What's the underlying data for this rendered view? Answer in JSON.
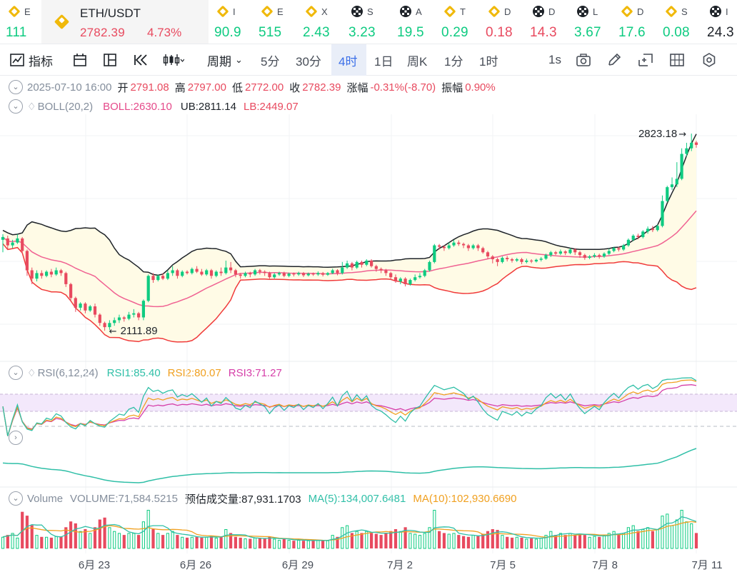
{
  "ticker": [
    {
      "name": "E",
      "value": "111",
      "icon": "binance-icon",
      "color": "#0ecb81"
    },
    {
      "name": "ETH/USDT",
      "value": "2782.39",
      "change": "4.73%",
      "icon": "binance-icon",
      "color": "#e84a5f",
      "active": true
    },
    {
      "name": "I",
      "value": "90.9",
      "icon": "binance-icon",
      "color": "#0ecb81"
    },
    {
      "name": "E",
      "value": "515",
      "icon": "binance-icon",
      "color": "#0ecb81"
    },
    {
      "name": "X",
      "value": "2.43",
      "icon": "binance-icon",
      "color": "#0ecb81"
    },
    {
      "name": "S",
      "value": "3.23",
      "icon": "okx-icon",
      "color": "#0ecb81"
    },
    {
      "name": "A",
      "value": "19.5",
      "icon": "okx-icon",
      "color": "#0ecb81"
    },
    {
      "name": "T",
      "value": "0.29",
      "icon": "binance-icon",
      "color": "#0ecb81"
    },
    {
      "name": "D",
      "value": "0.18",
      "icon": "binance-icon",
      "color": "#e84a5f"
    },
    {
      "name": "D",
      "value": "14.3",
      "icon": "okx-icon",
      "color": "#e84a5f"
    },
    {
      "name": "L",
      "value": "3.67",
      "icon": "okx-icon",
      "color": "#0ecb81"
    },
    {
      "name": "D",
      "value": "17.6",
      "icon": "binance-icon",
      "color": "#0ecb81"
    },
    {
      "name": "S",
      "value": "0.08",
      "icon": "binance-icon",
      "color": "#0ecb81"
    },
    {
      "name": "I",
      "value": "24.3",
      "icon": "okx-icon",
      "color": "#1e2329"
    }
  ],
  "toolbar": {
    "indicator_label": "指标",
    "period_label": "周期",
    "intervals": [
      "5分",
      "30分",
      "4时",
      "1日",
      "周K",
      "1分",
      "1时"
    ],
    "selected_interval": "4时",
    "speed_label": "1s"
  },
  "ohlc": {
    "date": "2025-07-10 16:00",
    "open_label": "开",
    "open": "2791.08",
    "high_label": "高",
    "high": "2797.00",
    "low_label": "低",
    "low": "2772.00",
    "close_label": "收",
    "close": "2782.39",
    "change_label": "涨幅",
    "change": "-0.31%(-8.70)",
    "amplitude_label": "振幅",
    "amplitude": "0.90%"
  },
  "boll": {
    "label": "BOLL(20,2)",
    "mid": "BOLL:2630.10",
    "ub": "UB:2811.14",
    "lb": "LB:2449.07"
  },
  "rsi": {
    "label": "RSI(6,12,24)",
    "rsi1": "RSI1:85.40",
    "rsi2": "RSI2:80.07",
    "rsi3": "RSI3:71.27"
  },
  "volume": {
    "label": "Volume",
    "volume": "VOLUME:71,584.5215",
    "estimated": "预估成交量:87,931.1703",
    "ma5": "MA(5):134,007.6481",
    "ma10": "MA(10):102,930.6690"
  },
  "chart_data": {
    "type": "candlestick",
    "x_ticks": [
      "6月 23",
      "6月 26",
      "6月 29",
      "7月 2",
      "7月 5",
      "7月 8",
      "7月 11"
    ],
    "price_annotations": {
      "high": "2823.18",
      "low": "2111.89"
    },
    "colors": {
      "up": "#0ecb81",
      "down": "#e84a5f",
      "boll_mid": "#f06292",
      "boll_band": "#f03a3a",
      "boll_ub": "#1e2329",
      "band_fill": "#fffbe6",
      "rsi1": "#2fbfa7",
      "rsi2": "#f0a020",
      "rsi3": "#d63fa9"
    },
    "candles": [
      [
        2440,
        2450,
        2395,
        2460
      ],
      [
        2445,
        2420,
        2405,
        2455
      ],
      [
        2420,
        2430,
        2410,
        2440
      ],
      [
        2430,
        2445,
        2425,
        2460
      ],
      [
        2445,
        2400,
        2390,
        2450
      ],
      [
        2400,
        2330,
        2310,
        2405
      ],
      [
        2330,
        2300,
        2280,
        2340
      ],
      [
        2300,
        2320,
        2290,
        2330
      ],
      [
        2320,
        2310,
        2300,
        2330
      ],
      [
        2310,
        2325,
        2305,
        2330
      ],
      [
        2325,
        2315,
        2305,
        2335
      ],
      [
        2315,
        2330,
        2310,
        2340
      ],
      [
        2330,
        2320,
        2310,
        2335
      ],
      [
        2320,
        2280,
        2270,
        2325
      ],
      [
        2280,
        2230,
        2220,
        2285
      ],
      [
        2230,
        2195,
        2180,
        2235
      ],
      [
        2195,
        2210,
        2185,
        2215
      ],
      [
        2210,
        2185,
        2175,
        2215
      ],
      [
        2185,
        2200,
        2180,
        2205
      ],
      [
        2200,
        2170,
        2160,
        2210
      ],
      [
        2170,
        2140,
        2130,
        2175
      ],
      [
        2140,
        2125,
        2112,
        2145
      ],
      [
        2125,
        2140,
        2115,
        2150
      ],
      [
        2140,
        2150,
        2130,
        2160
      ],
      [
        2150,
        2160,
        2140,
        2170
      ],
      [
        2160,
        2155,
        2145,
        2165
      ],
      [
        2155,
        2170,
        2150,
        2180
      ],
      [
        2170,
        2175,
        2160,
        2190
      ],
      [
        2175,
        2160,
        2150,
        2180
      ],
      [
        2160,
        2220,
        2150,
        2225
      ],
      [
        2220,
        2310,
        2215,
        2315
      ],
      [
        2310,
        2295,
        2285,
        2320
      ],
      [
        2295,
        2310,
        2290,
        2315
      ],
      [
        2310,
        2300,
        2295,
        2320
      ],
      [
        2300,
        2320,
        2295,
        2330
      ],
      [
        2320,
        2330,
        2310,
        2345
      ],
      [
        2330,
        2310,
        2300,
        2335
      ],
      [
        2310,
        2325,
        2305,
        2330
      ],
      [
        2325,
        2320,
        2315,
        2330
      ],
      [
        2320,
        2335,
        2315,
        2340
      ],
      [
        2335,
        2325,
        2320,
        2345
      ],
      [
        2325,
        2315,
        2310,
        2335
      ],
      [
        2315,
        2330,
        2310,
        2335
      ],
      [
        2330,
        2310,
        2300,
        2335
      ],
      [
        2310,
        2325,
        2305,
        2330
      ],
      [
        2325,
        2320,
        2310,
        2340
      ],
      [
        2320,
        2340,
        2315,
        2365
      ],
      [
        2340,
        2330,
        2320,
        2360
      ],
      [
        2330,
        2315,
        2305,
        2335
      ],
      [
        2315,
        2310,
        2300,
        2320
      ],
      [
        2310,
        2320,
        2305,
        2325
      ],
      [
        2320,
        2315,
        2305,
        2325
      ],
      [
        2315,
        2330,
        2310,
        2335
      ],
      [
        2330,
        2325,
        2315,
        2335
      ],
      [
        2325,
        2320,
        2310,
        2330
      ],
      [
        2320,
        2305,
        2300,
        2325
      ],
      [
        2305,
        2315,
        2300,
        2320
      ],
      [
        2315,
        2320,
        2310,
        2325
      ],
      [
        2320,
        2310,
        2305,
        2325
      ],
      [
        2310,
        2318,
        2305,
        2322
      ],
      [
        2318,
        2315,
        2308,
        2322
      ],
      [
        2315,
        2320,
        2310,
        2325
      ],
      [
        2320,
        2312,
        2306,
        2324
      ],
      [
        2312,
        2318,
        2308,
        2322
      ],
      [
        2318,
        2315,
        2310,
        2322
      ],
      [
        2315,
        2320,
        2310,
        2326
      ],
      [
        2320,
        2314,
        2308,
        2324
      ],
      [
        2314,
        2320,
        2310,
        2324
      ],
      [
        2320,
        2330,
        2316,
        2336
      ],
      [
        2330,
        2320,
        2312,
        2334
      ],
      [
        2320,
        2340,
        2315,
        2360
      ],
      [
        2340,
        2355,
        2335,
        2365
      ],
      [
        2355,
        2340,
        2330,
        2360
      ],
      [
        2340,
        2360,
        2335,
        2365
      ],
      [
        2360,
        2350,
        2340,
        2365
      ],
      [
        2350,
        2365,
        2345,
        2370
      ],
      [
        2365,
        2345,
        2340,
        2370
      ],
      [
        2345,
        2335,
        2325,
        2350
      ],
      [
        2335,
        2330,
        2320,
        2340
      ],
      [
        2330,
        2320,
        2310,
        2335
      ],
      [
        2320,
        2305,
        2295,
        2325
      ],
      [
        2305,
        2290,
        2285,
        2315
      ],
      [
        2290,
        2300,
        2280,
        2305
      ],
      [
        2300,
        2280,
        2272,
        2305
      ],
      [
        2280,
        2295,
        2275,
        2300
      ],
      [
        2295,
        2305,
        2290,
        2315
      ],
      [
        2305,
        2310,
        2300,
        2320
      ],
      [
        2310,
        2330,
        2305,
        2335
      ],
      [
        2330,
        2360,
        2325,
        2365
      ],
      [
        2360,
        2420,
        2355,
        2425
      ],
      [
        2420,
        2415,
        2405,
        2425
      ],
      [
        2415,
        2410,
        2400,
        2420
      ],
      [
        2410,
        2420,
        2405,
        2430
      ],
      [
        2420,
        2430,
        2415,
        2440
      ],
      [
        2430,
        2425,
        2418,
        2438
      ],
      [
        2425,
        2420,
        2410,
        2430
      ],
      [
        2420,
        2410,
        2400,
        2425
      ],
      [
        2410,
        2420,
        2405,
        2425
      ],
      [
        2420,
        2410,
        2400,
        2425
      ],
      [
        2410,
        2395,
        2390,
        2415
      ],
      [
        2395,
        2380,
        2370,
        2400
      ],
      [
        2380,
        2370,
        2355,
        2385
      ],
      [
        2370,
        2360,
        2345,
        2375
      ],
      [
        2360,
        2375,
        2355,
        2380
      ],
      [
        2375,
        2370,
        2362,
        2382
      ],
      [
        2370,
        2365,
        2358,
        2375
      ],
      [
        2365,
        2370,
        2360,
        2375
      ],
      [
        2370,
        2360,
        2352,
        2375
      ],
      [
        2360,
        2365,
        2355,
        2372
      ],
      [
        2365,
        2362,
        2356,
        2370
      ],
      [
        2362,
        2368,
        2358,
        2372
      ],
      [
        2368,
        2372,
        2362,
        2378
      ],
      [
        2372,
        2385,
        2368,
        2390
      ],
      [
        2385,
        2395,
        2378,
        2400
      ],
      [
        2395,
        2390,
        2385,
        2400
      ],
      [
        2390,
        2398,
        2385,
        2405
      ],
      [
        2398,
        2392,
        2385,
        2402
      ],
      [
        2392,
        2405,
        2388,
        2410
      ],
      [
        2405,
        2395,
        2385,
        2410
      ],
      [
        2395,
        2385,
        2375,
        2400
      ],
      [
        2385,
        2375,
        2368,
        2390
      ],
      [
        2375,
        2380,
        2370,
        2385
      ],
      [
        2380,
        2385,
        2375,
        2392
      ],
      [
        2385,
        2380,
        2372,
        2390
      ],
      [
        2380,
        2390,
        2375,
        2395
      ],
      [
        2390,
        2400,
        2385,
        2408
      ],
      [
        2400,
        2410,
        2395,
        2415
      ],
      [
        2410,
        2405,
        2398,
        2415
      ],
      [
        2405,
        2420,
        2400,
        2425
      ],
      [
        2420,
        2440,
        2415,
        2445
      ],
      [
        2440,
        2455,
        2435,
        2460
      ],
      [
        2455,
        2450,
        2442,
        2462
      ],
      [
        2450,
        2470,
        2445,
        2475
      ],
      [
        2470,
        2480,
        2462,
        2488
      ],
      [
        2480,
        2475,
        2468,
        2490
      ],
      [
        2475,
        2490,
        2470,
        2495
      ],
      [
        2490,
        2580,
        2485,
        2600
      ],
      [
        2580,
        2630,
        2575,
        2635
      ],
      [
        2630,
        2640,
        2620,
        2665
      ],
      [
        2640,
        2660,
        2630,
        2720
      ],
      [
        2660,
        2750,
        2655,
        2770
      ],
      [
        2750,
        2770,
        2740,
        2790
      ],
      [
        2770,
        2790,
        2760,
        2823.18
      ],
      [
        2791.08,
        2782.39,
        2772,
        2797
      ]
    ],
    "volume": [
      0.3,
      0.35,
      0.4,
      0.28,
      0.95,
      0.85,
      0.6,
      0.35,
      0.3,
      0.3,
      0.28,
      0.32,
      0.3,
      0.55,
      0.7,
      0.65,
      0.45,
      0.5,
      0.4,
      0.55,
      0.75,
      0.8,
      0.55,
      0.45,
      0.4,
      0.35,
      0.4,
      0.4,
      0.35,
      0.7,
      1.0,
      0.5,
      0.4,
      0.35,
      0.4,
      0.45,
      0.35,
      0.3,
      0.28,
      0.3,
      0.3,
      0.28,
      0.3,
      0.32,
      0.28,
      0.3,
      0.5,
      0.4,
      0.3,
      0.28,
      0.26,
      0.25,
      0.28,
      0.26,
      0.25,
      0.3,
      0.25,
      0.22,
      0.24,
      0.22,
      0.2,
      0.22,
      0.2,
      0.21,
      0.2,
      0.22,
      0.2,
      0.21,
      0.35,
      0.3,
      0.55,
      0.6,
      0.4,
      0.45,
      0.4,
      0.45,
      0.4,
      0.38,
      0.35,
      0.4,
      0.45,
      0.5,
      0.45,
      0.55,
      0.4,
      0.38,
      0.35,
      0.4,
      0.55,
      1.0,
      0.45,
      0.4,
      0.38,
      0.4,
      0.35,
      0.32,
      0.3,
      0.35,
      0.32,
      0.38,
      0.45,
      0.5,
      0.48,
      0.35,
      0.3,
      0.28,
      0.3,
      0.28,
      0.25,
      0.26,
      0.25,
      0.28,
      0.35,
      0.45,
      0.35,
      0.4,
      0.35,
      0.4,
      0.35,
      0.38,
      0.35,
      0.3,
      0.32,
      0.3,
      0.35,
      0.4,
      0.45,
      0.38,
      0.4,
      0.55,
      0.6,
      0.45,
      0.5,
      0.55,
      0.45,
      0.5,
      0.85,
      0.9,
      0.6,
      0.75,
      1.0,
      0.7,
      0.65,
      0.4
    ]
  }
}
